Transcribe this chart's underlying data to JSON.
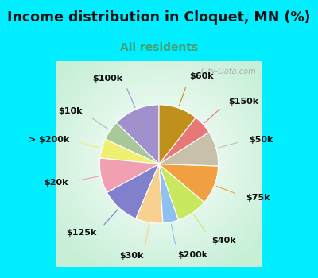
{
  "title": "Income distribution in Cloquet, MN (%)",
  "subtitle": "All residents",
  "title_color": "#111111",
  "subtitle_color": "#4a9e6e",
  "bg_cyan": "#00eeff",
  "bg_chart_color": "#d8f0e0",
  "watermark": "City-Data.com",
  "labels": [
    "$100k",
    "$10k",
    "> $200k",
    "$20k",
    "$125k",
    "$30k",
    "$200k",
    "$40k",
    "$75k",
    "$50k",
    "$150k",
    "$60k"
  ],
  "values": [
    12,
    5,
    5,
    9,
    10,
    7,
    4,
    8,
    10,
    9,
    5,
    10
  ],
  "colors": [
    "#a090cc",
    "#a8c898",
    "#f0f070",
    "#f0a0b0",
    "#8080cc",
    "#f8d090",
    "#90c0f0",
    "#c8e860",
    "#f0a040",
    "#c8c0a8",
    "#e87878",
    "#c0901c"
  ],
  "startangle": 90,
  "label_fontsize": 8,
  "title_fontsize": 12.5,
  "subtitle_fontsize": 10
}
